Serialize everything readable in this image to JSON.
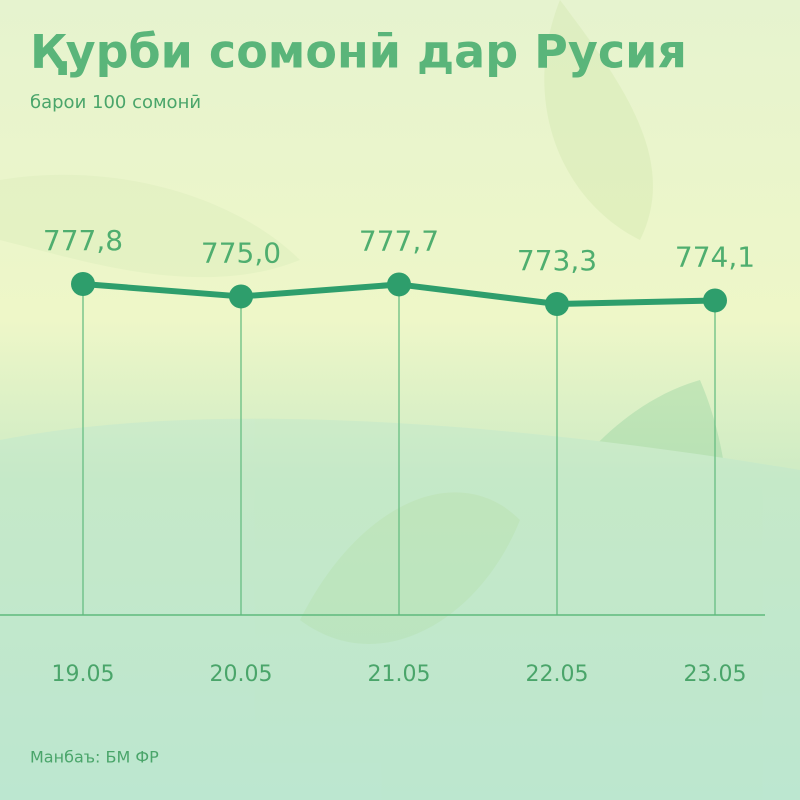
{
  "chart_data": {
    "type": "line",
    "title": "Қурби сомонӣ дар Русия",
    "subtitle": "барои 100 сомонӣ",
    "source": "Манбаъ: БМ ФР",
    "categories": [
      "19.05",
      "20.05",
      "21.05",
      "22.05",
      "23.05"
    ],
    "values": [
      777.8,
      775.0,
      777.7,
      773.3,
      774.1
    ],
    "value_labels": [
      "777,8",
      "775,0",
      "777,7",
      "773,3",
      "774,1"
    ],
    "color": "#2e9e6c"
  }
}
